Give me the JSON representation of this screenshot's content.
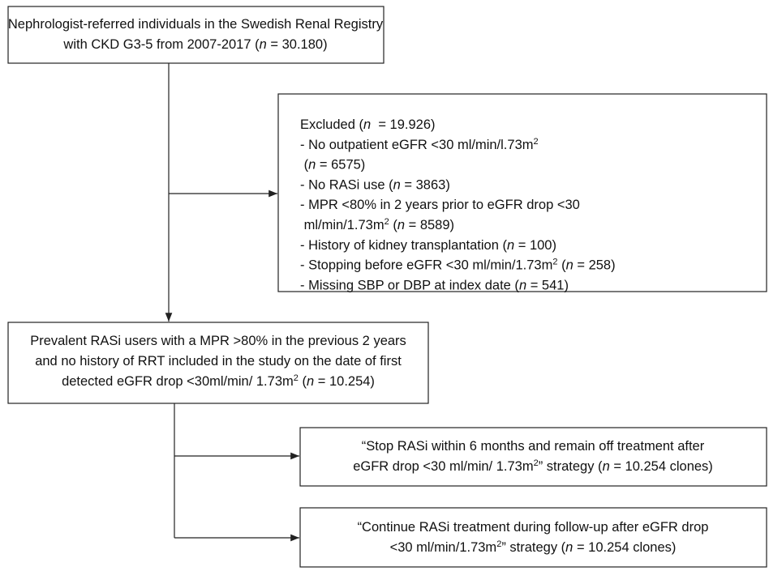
{
  "boxes": [
    {
      "align": "center",
      "lines": [
        [
          {
            "text": "Nephrologist-referred individuals in the Swedish Renal Registry"
          }
        ],
        [
          {
            "text": "with CKD G3-5 from 2007-2017 ("
          },
          {
            "text": "n",
            "style": "italic"
          },
          {
            "text": " = 30.180)"
          }
        ]
      ]
    },
    {
      "align": "left",
      "lines": [
        [
          {
            "text": "Excluded ("
          },
          {
            "text": "n",
            "style": "italic"
          },
          {
            "text": "  = 19.926)"
          }
        ],
        [
          {
            "text": "- No outpatient eGFR <30 ml/min/l.73m"
          },
          {
            "text": "2",
            "style": "sup"
          }
        ],
        [
          {
            "text": " ("
          },
          {
            "text": "n",
            "style": "italic"
          },
          {
            "text": " = 6575)"
          }
        ],
        [
          {
            "text": "- No RASi use ("
          },
          {
            "text": "n",
            "style": "italic"
          },
          {
            "text": " = 3863)"
          }
        ],
        [
          {
            "text": "- MPR <80% in 2 years prior to eGFR drop <30"
          }
        ],
        [
          {
            "text": " ml/min/1.73m"
          },
          {
            "text": "2",
            "style": "sup"
          },
          {
            "text": " ("
          },
          {
            "text": "n",
            "style": "italic"
          },
          {
            "text": " = 8589)"
          }
        ],
        [
          {
            "text": "- History of kidney transplantation ("
          },
          {
            "text": "n",
            "style": "italic"
          },
          {
            "text": " = 100)"
          }
        ],
        [
          {
            "text": "- Stopping before eGFR <30 ml/min/1.73m"
          },
          {
            "text": "2",
            "style": "sup"
          },
          {
            "text": " ("
          },
          {
            "text": "n",
            "style": "italic"
          },
          {
            "text": " = 258)"
          }
        ],
        [
          {
            "text": "- Missing SBP or DBP at index date ("
          },
          {
            "text": "n",
            "style": "italic"
          },
          {
            "text": " = 541)"
          }
        ]
      ]
    },
    {
      "align": "center",
      "lines": [
        [
          {
            "text": "Prevalent RASi users with a MPR >80% in the previous 2 years"
          }
        ],
        [
          {
            "text": "and no history of RRT included in the study on the date of first"
          }
        ],
        [
          {
            "text": "detected eGFR drop <30ml/min/ 1.73m"
          },
          {
            "text": "2",
            "style": "sup"
          },
          {
            "text": " ("
          },
          {
            "text": "n",
            "style": "italic"
          },
          {
            "text": " = 10.254)"
          }
        ]
      ]
    },
    {
      "align": "center",
      "lines": [
        [
          {
            "text": "“Stop RASi within 6 months and remain off treatment after"
          }
        ],
        [
          {
            "text": "eGFR drop <30 ml/min/ 1.73m"
          },
          {
            "text": "2",
            "style": "sup"
          },
          {
            "text": "” strategy ("
          },
          {
            "text": "n",
            "style": "italic"
          },
          {
            "text": " = 10.254 clones)"
          }
        ]
      ]
    },
    {
      "align": "center",
      "lines": [
        [
          {
            "text": "“Continue RASi treatment during follow-up after eGFR drop"
          }
        ],
        [
          {
            "text": "<30 ml/min/1.73m"
          },
          {
            "text": "2",
            "style": "sup"
          },
          {
            "text": "” strategy ("
          },
          {
            "text": "n",
            "style": "italic"
          },
          {
            "text": " = 10.254 clones)"
          }
        ]
      ]
    }
  ]
}
